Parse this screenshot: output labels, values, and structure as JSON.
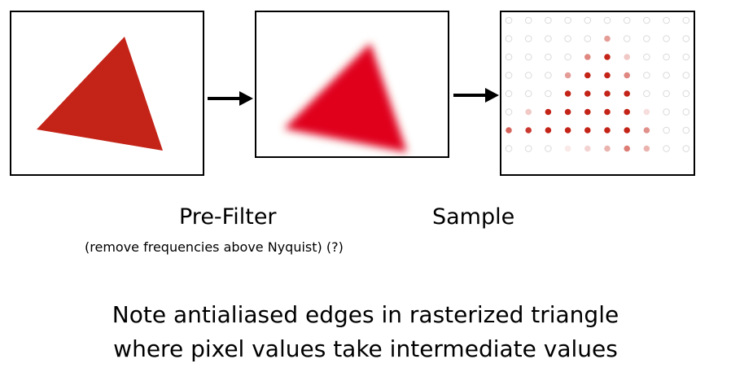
{
  "labels": {
    "prefilter": "Pre-Filter",
    "prefilter_sub": "(remove frequencies above Nyquist) (?)",
    "sample": "Sample"
  },
  "note": {
    "line1": "Note antialiased edges in rasterized triangle",
    "line2": "where pixel values take intermediate values"
  },
  "colors": {
    "triangle": "#c42418",
    "blurred_triangle": "#e0001c",
    "sample_full": "#c42418",
    "sample_empty_ring": "#d9d9d9",
    "frame": "#000000"
  },
  "sample_grid": {
    "rows": 8,
    "cols": 10,
    "coverage": [
      [
        0,
        0,
        0,
        0,
        0,
        0,
        0,
        0,
        0,
        0
      ],
      [
        0,
        0,
        0,
        0,
        0,
        0.45,
        0,
        0,
        0,
        0
      ],
      [
        0,
        0,
        0,
        0,
        0.55,
        1,
        0.25,
        0,
        0,
        0
      ],
      [
        0,
        0,
        0,
        0.45,
        1,
        1,
        0.55,
        0,
        0,
        0
      ],
      [
        0,
        0,
        0,
        1,
        1,
        1,
        1,
        0,
        0,
        0
      ],
      [
        0,
        0.25,
        1,
        1,
        1,
        1,
        1,
        0.15,
        0,
        0
      ],
      [
        0.7,
        0.9,
        1,
        1,
        1,
        1,
        1,
        0.5,
        0,
        0
      ],
      [
        0,
        0,
        0,
        0.1,
        0.2,
        0.35,
        0.6,
        0.35,
        0,
        0
      ]
    ]
  }
}
